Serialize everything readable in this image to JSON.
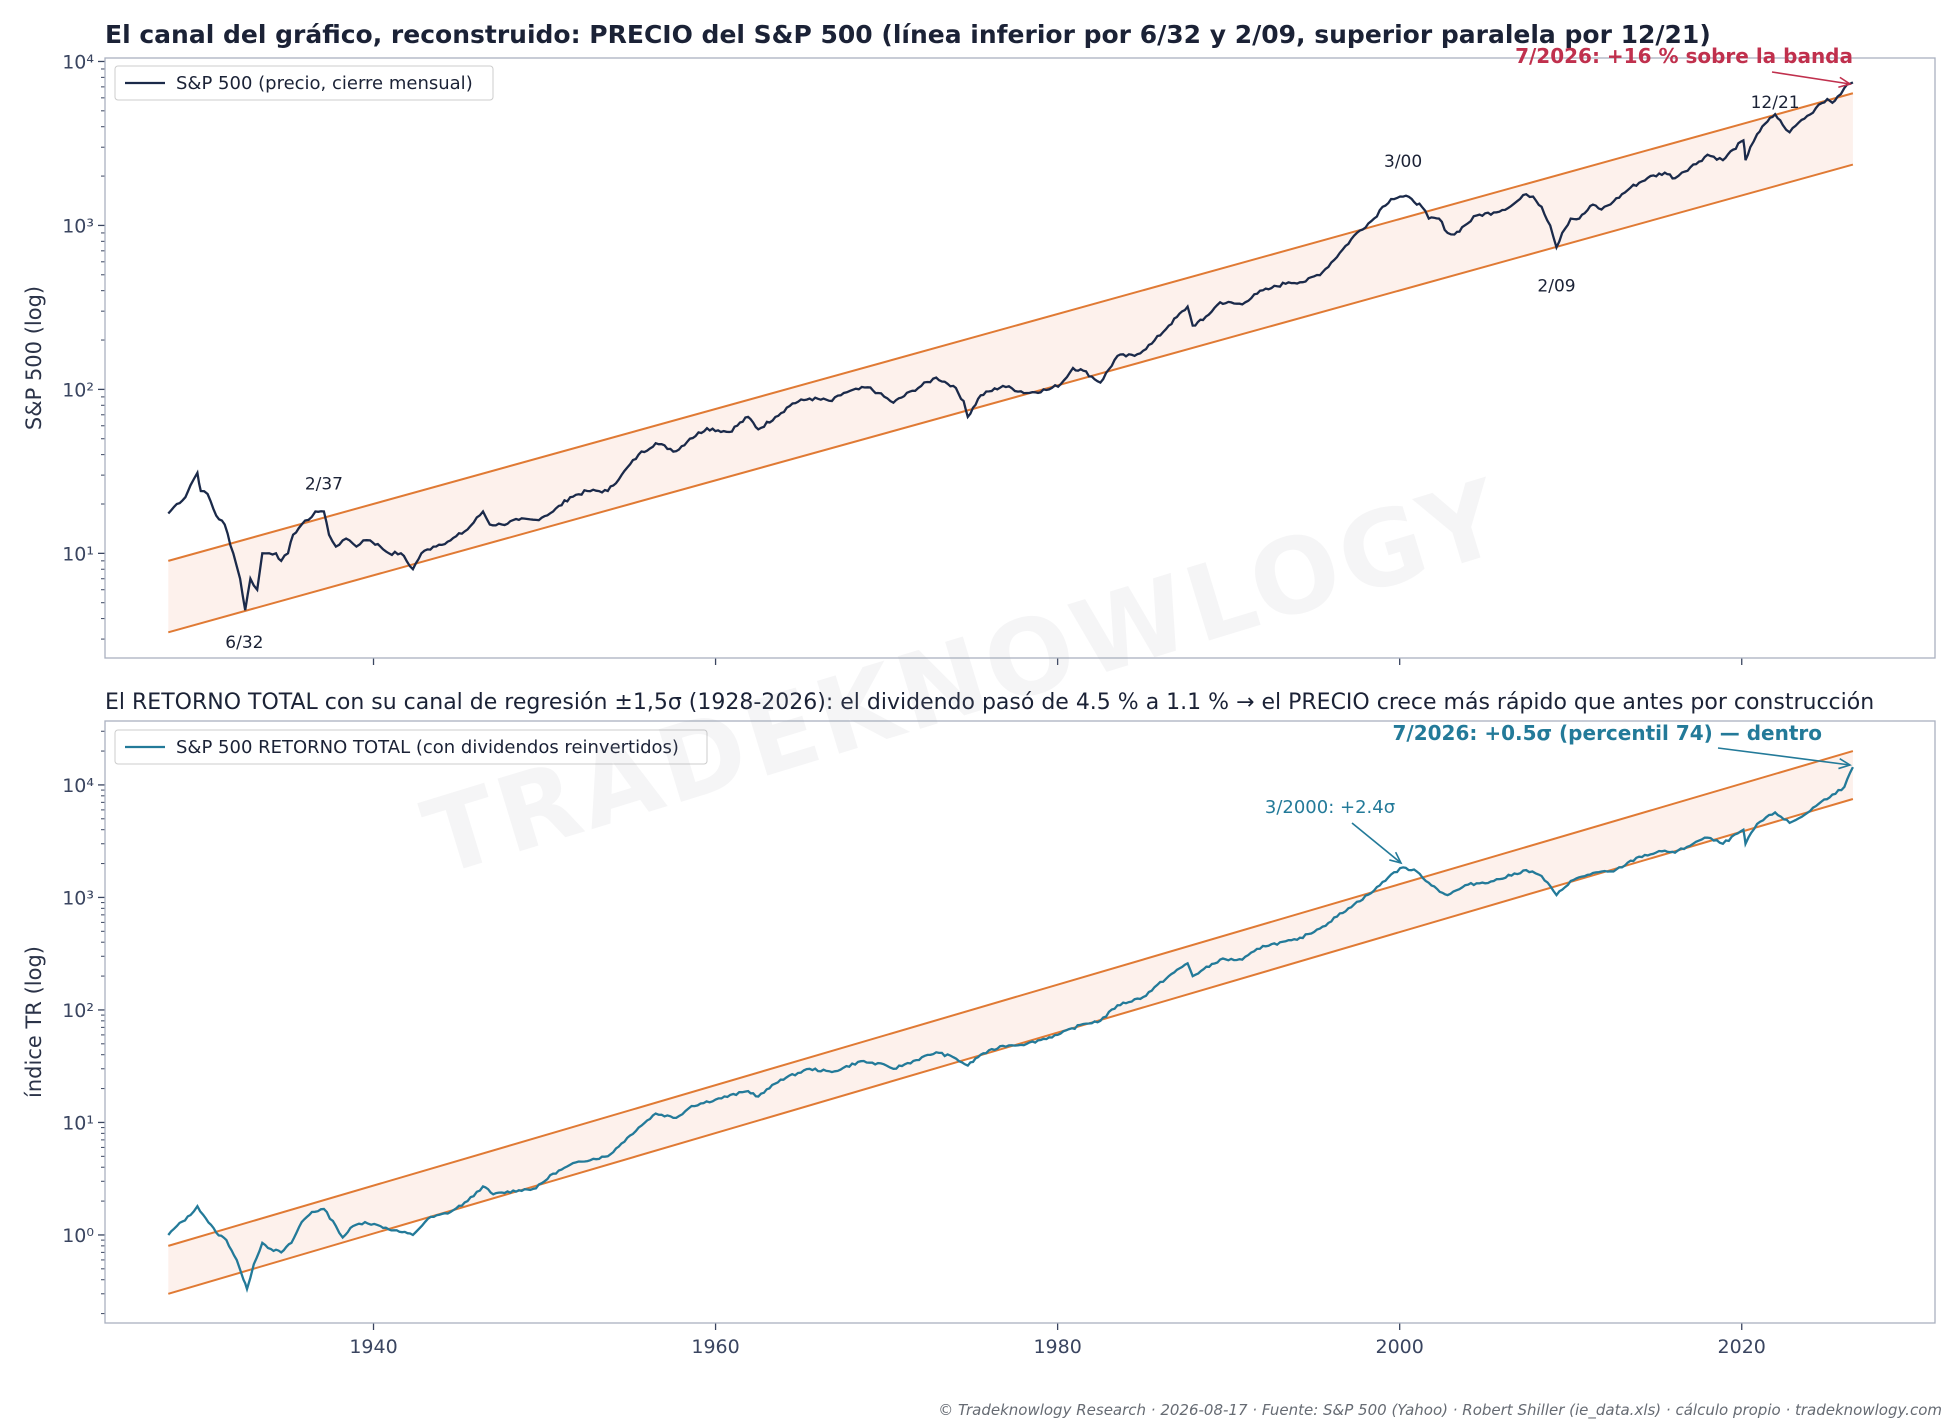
{
  "title_top": "El canal del gráfico, reconstruido: PRECIO del S&P 500 (línea inferior por 6/32 y 2/09, superior paralela por 12/21)",
  "title_bottom": "El RETORNO TOTAL con su canal de regresión ±1,5σ (1928-2026): el dividendo pasó de 4.5 % a 1.1 % → el PRECIO crece más rápido que antes por construcción",
  "footer": "© Tradeknowlogy Research   ·   2026-08-17   ·   Fuente: S&P 500 (Yahoo) · Robert Shiller (ie_data.xls) · cálculo propio   ·   tradeknowlogy.com",
  "watermark": "TRADEKNOWLOGY",
  "colors": {
    "price_line": "#1b2a4a",
    "tr_line": "#237a99",
    "channel": "#e07a34",
    "band_fill": "#fdf1ec",
    "highlight_red": "#c0304d",
    "highlight_teal": "#237a99"
  },
  "chart_data": [
    {
      "type": "line",
      "yscale": "log",
      "ylabel": "S&P 500 (log)",
      "xlim": [
        1924.3,
        2031.3
      ],
      "ylim": [
        2.3,
        10500
      ],
      "xticks": [
        1940,
        1960,
        1980,
        2000,
        2020
      ],
      "yticks": [
        {
          "value": 10,
          "label": "10¹"
        },
        {
          "value": 100,
          "label": "10²"
        },
        {
          "value": 1000,
          "label": "10³"
        },
        {
          "value": 10000,
          "label": "10⁴"
        }
      ],
      "legend": {
        "position": "top-left",
        "entries": [
          "S&P 500 (precio, cierre mensual)"
        ]
      },
      "series": [
        {
          "name": "S&P 500 (precio, cierre mensual)",
          "x": [
            1928.0,
            1928.5,
            1929.0,
            1929.3,
            1929.7,
            1929.9,
            1930.3,
            1930.8,
            1931.3,
            1931.8,
            1932.2,
            1932.5,
            1932.8,
            1933.2,
            1933.5,
            1933.9,
            1934.3,
            1934.6,
            1935.0,
            1935.3,
            1935.8,
            1936.2,
            1936.6,
            1937.1,
            1937.4,
            1937.8,
            1938.2,
            1938.6,
            1939.0,
            1939.4,
            1939.8,
            1940.4,
            1940.9,
            1941.6,
            1942.3,
            1942.8,
            1943.5,
            1944.5,
            1945.5,
            1946.4,
            1946.8,
            1947.5,
            1948.5,
            1949.5,
            1950.5,
            1951.5,
            1952.5,
            1953.7,
            1954.5,
            1955.5,
            1956.5,
            1957.7,
            1958.5,
            1959.5,
            1960.8,
            1961.9,
            1962.5,
            1963.5,
            1964.5,
            1965.5,
            1966.8,
            1967.5,
            1968.9,
            1969.5,
            1970.4,
            1971.5,
            1972.9,
            1973.9,
            1974.5,
            1974.75,
            1975.5,
            1976.8,
            1978.2,
            1979.5,
            1980.2,
            1980.9,
            1981.5,
            1982.5,
            1983.5,
            1984.5,
            1985.5,
            1986.5,
            1987.6,
            1987.9,
            1988.5,
            1989.5,
            1990.8,
            1991.5,
            1992.5,
            1993.5,
            1994.5,
            1995.5,
            1996.5,
            1997.5,
            1998.5,
            1999.0,
            1999.5,
            2000.2,
            2000.7,
            2001.3,
            2001.7,
            2002.3,
            2002.8,
            2003.2,
            2003.8,
            2004.5,
            2005.5,
            2006.5,
            2007.4,
            2007.8,
            2008.3,
            2008.8,
            2009.17,
            2009.5,
            2010.0,
            2010.5,
            2011.3,
            2011.8,
            2012.5,
            2013.5,
            2014.5,
            2015.5,
            2016.1,
            2016.5,
            2017.5,
            2018.0,
            2018.9,
            2019.5,
            2020.1,
            2020.22,
            2020.5,
            2020.9,
            2021.5,
            2021.95,
            2022.4,
            2022.8,
            2023.5,
            2024.0,
            2024.5,
            2025.0,
            2025.3,
            2025.6,
            2026.0,
            2026.5
          ],
          "y": [
            17.5,
            20,
            22,
            26,
            31,
            24,
            23,
            17,
            15,
            10,
            7,
            4.5,
            7,
            6,
            10,
            10,
            10,
            9,
            10,
            13,
            15,
            16,
            18,
            18,
            13,
            11,
            12,
            12,
            11,
            12,
            12,
            11,
            10,
            10,
            8,
            10,
            11,
            12,
            14,
            18,
            15,
            15,
            16,
            16,
            18,
            22,
            24,
            24,
            30,
            40,
            47,
            42,
            50,
            58,
            55,
            68,
            57,
            68,
            82,
            88,
            85,
            95,
            103,
            95,
            83,
            98,
            118,
            105,
            85,
            68,
            92,
            105,
            95,
            100,
            108,
            135,
            130,
            110,
            160,
            160,
            190,
            245,
            320,
            245,
            265,
            340,
            330,
            380,
            415,
            450,
            455,
            520,
            680,
            900,
            1100,
            1300,
            1450,
            1500,
            1450,
            1300,
            1100,
            1100,
            900,
            880,
            1000,
            1150,
            1200,
            1310,
            1550,
            1500,
            1300,
            1000,
            735,
            900,
            1100,
            1100,
            1340,
            1250,
            1400,
            1700,
            1950,
            2100,
            1940,
            2100,
            2450,
            2700,
            2500,
            2900,
            3300,
            2500,
            3000,
            3600,
            4300,
            4766,
            4100,
            3700,
            4400,
            4750,
            5450,
            5900,
            5600,
            6100,
            6900,
            7450
          ]
        }
      ],
      "channel": {
        "x": [
          1928,
          2026.5
        ],
        "lower": [
          3.3,
          2350
        ],
        "upper": [
          9.0,
          6400
        ]
      },
      "annotations": [
        {
          "text": "6/32",
          "x": 1932.45,
          "y": 4.4
        },
        {
          "text": "2/37",
          "x": 1937.1,
          "y": 18
        },
        {
          "text": "3/00",
          "x": 2000.2,
          "y": 1530
        },
        {
          "text": "2/09",
          "x": 2009.17,
          "y": 735
        },
        {
          "text": "12/21",
          "x": 2021.95,
          "y": 4766
        },
        {
          "text": "7/2026: +16 % sobre la banda",
          "x": 2026.5,
          "y": 7450,
          "highlight": true
        }
      ]
    },
    {
      "type": "line",
      "yscale": "log",
      "ylabel": "índice TR (log)",
      "xlim": [
        1924.3,
        2031.3
      ],
      "ylim": [
        0.165,
        37000
      ],
      "xticks": [
        1940,
        1960,
        1980,
        2000,
        2020
      ],
      "yticks": [
        {
          "value": 1,
          "label": "10⁰"
        },
        {
          "value": 10,
          "label": "10¹"
        },
        {
          "value": 100,
          "label": "10²"
        },
        {
          "value": 1000,
          "label": "10³"
        },
        {
          "value": 10000,
          "label": "10⁴"
        }
      ],
      "legend": {
        "position": "top-left",
        "entries": [
          "S&P 500 RETORNO TOTAL (con dividendos reinvertidos)"
        ]
      },
      "series": [
        {
          "name": "S&P 500 RETORNO TOTAL (con dividendos reinvertidos)",
          "x": [
            1928.0,
            1928.5,
            1929.3,
            1929.7,
            1930.2,
            1930.8,
            1931.4,
            1932.0,
            1932.4,
            1932.6,
            1933.0,
            1933.5,
            1934.0,
            1934.6,
            1935.2,
            1935.8,
            1936.4,
            1937.1,
            1937.8,
            1938.2,
            1938.8,
            1939.5,
            1940.4,
            1941.2,
            1942.3,
            1943.2,
            1944.5,
            1945.5,
            1946.4,
            1947.0,
            1948.5,
            1949.5,
            1950.5,
            1952.0,
            1953.7,
            1954.5,
            1955.5,
            1956.5,
            1957.7,
            1958.6,
            1960.0,
            1961.9,
            1962.5,
            1963.8,
            1965.5,
            1966.8,
            1968.5,
            1970.0,
            1970.4,
            1972.9,
            1973.9,
            1974.75,
            1975.5,
            1976.8,
            1978.2,
            1980.0,
            1981.5,
            1982.5,
            1983.5,
            1985.0,
            1986.5,
            1987.6,
            1987.9,
            1989.5,
            1990.8,
            1992.0,
            1994.0,
            1995.5,
            1997.0,
            1998.5,
            1999.5,
            2000.2,
            2001.0,
            2001.7,
            2002.5,
            2002.8,
            2004.0,
            2005.5,
            2007.4,
            2008.3,
            2009.17,
            2010.0,
            2011.3,
            2012.5,
            2014.0,
            2015.5,
            2016.1,
            2017.5,
            2018.0,
            2018.9,
            2020.1,
            2020.22,
            2020.9,
            2021.95,
            2022.8,
            2023.5,
            2024.5,
            2025.3,
            2026.0,
            2026.5
          ],
          "y": [
            1.0,
            1.2,
            1.5,
            1.8,
            1.4,
            1.05,
            0.9,
            0.6,
            0.4,
            0.33,
            0.55,
            0.85,
            0.75,
            0.7,
            0.85,
            1.3,
            1.6,
            1.7,
            1.2,
            0.95,
            1.2,
            1.3,
            1.2,
            1.1,
            1.0,
            1.4,
            1.6,
            2.0,
            2.7,
            2.3,
            2.5,
            2.6,
            3.5,
            4.5,
            5.0,
            6.5,
            9,
            12,
            11,
            14,
            16,
            19,
            17,
            24,
            30,
            28,
            35,
            32,
            30,
            42,
            38,
            32,
            40,
            48,
            50,
            60,
            75,
            80,
            110,
            130,
            200,
            260,
            200,
            280,
            280,
            370,
            420,
            550,
            800,
            1150,
            1600,
            1850,
            1700,
            1350,
            1100,
            1050,
            1300,
            1400,
            1750,
            1550,
            1050,
            1400,
            1650,
            1700,
            2300,
            2600,
            2500,
            3200,
            3400,
            3000,
            4000,
            3000,
            4500,
            5700,
            4600,
            5200,
            6800,
            8200,
            9600,
            14400
          ]
        }
      ],
      "channel": {
        "x": [
          1928,
          2026.5
        ],
        "lower": [
          0.3,
          7500
        ],
        "upper": [
          0.8,
          20000
        ]
      },
      "annotations": [
        {
          "text": "3/2000: +2.4σ",
          "x": 2000.2,
          "y": 1850,
          "highlight": true
        },
        {
          "text": "7/2026: +0.5σ (percentil 74) — dentro",
          "x": 2026.5,
          "y": 14400,
          "highlight": true
        }
      ]
    }
  ]
}
